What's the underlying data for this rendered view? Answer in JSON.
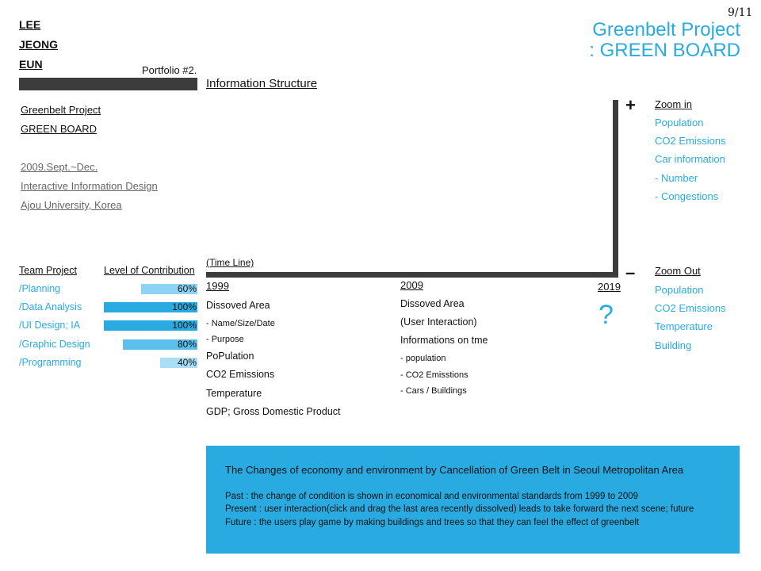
{
  "page_number": "9/11",
  "header": {
    "title_line1": "Greenbelt Project",
    "title_line2": ": GREEN BOARD"
  },
  "author": {
    "line1": "LEE",
    "line2": "JEONG",
    "line3": "EUN"
  },
  "portfolio_label": "Portfolio #2.",
  "section_title": "Information Structure",
  "project": {
    "name": "Greenbelt Project",
    "board": "GREEN BOARD",
    "date": "2009.Sept.~Dec.",
    "course": "Interactive Information Design",
    "school": "Ajou University, Korea"
  },
  "zoom_in": {
    "symbol": "+",
    "heading": "Zoom in",
    "items": [
      "Population",
      "CO2 Emissions",
      "Car information",
      "- Number",
      "- Congestions"
    ]
  },
  "zoom_out": {
    "symbol": "–",
    "heading": "Zoom Out",
    "items": [
      "Population",
      "CO2 Emissions",
      "Temperature",
      "Building"
    ]
  },
  "timeline": {
    "label": "(Time Line)",
    "years": [
      "1999",
      "2009",
      "2019"
    ],
    "unknown_mark": "?",
    "col1999": [
      "Dissoved Area",
      "- Name/Size/Date",
      "- Purpose",
      "PoPulation",
      "CO2 Emissions",
      "Temperature",
      "GDP; Gross Domestic Product"
    ],
    "col2009": [
      "Dissoved Area",
      "(User Interaction)",
      "Informations on tme",
      "- population",
      "- CO2 Emisstions",
      "- Cars / Buildings"
    ]
  },
  "team": {
    "heading_left": "Team Project",
    "heading_right": "Level of Contribution",
    "rows": [
      {
        "label": "/Planning",
        "pct_label": "60%",
        "fraction": 0.6,
        "color": "#8fd3f4"
      },
      {
        "label": "/Data Analysis",
        "pct_label": "100%",
        "fraction": 1.0,
        "color": "#29abe2"
      },
      {
        "label": "/UI Design; IA",
        "pct_label": "100%",
        "fraction": 1.0,
        "color": "#29abe2"
      },
      {
        "label": "/Graphic Design",
        "pct_label": "80%",
        "fraction": 0.8,
        "color": "#5cc0ec"
      },
      {
        "label": "/Programming",
        "pct_label": "40%",
        "fraction": 0.4,
        "color": "#a9def6"
      }
    ]
  },
  "summary": {
    "title": "The Changes of economy and environment  by Cancellation of Green Belt in Seoul Metropolitan Area",
    "past": "Past        : the change of condition is shown in economical and environmental standards from 1999 to 2009",
    "present": "Present  : user interaction(click and drag the last area recently dissolved) leads to take forward the next scene; future",
    "future": "Future    : the users play game by making buildings and trees so that they can feel the effect of greenbelt"
  }
}
